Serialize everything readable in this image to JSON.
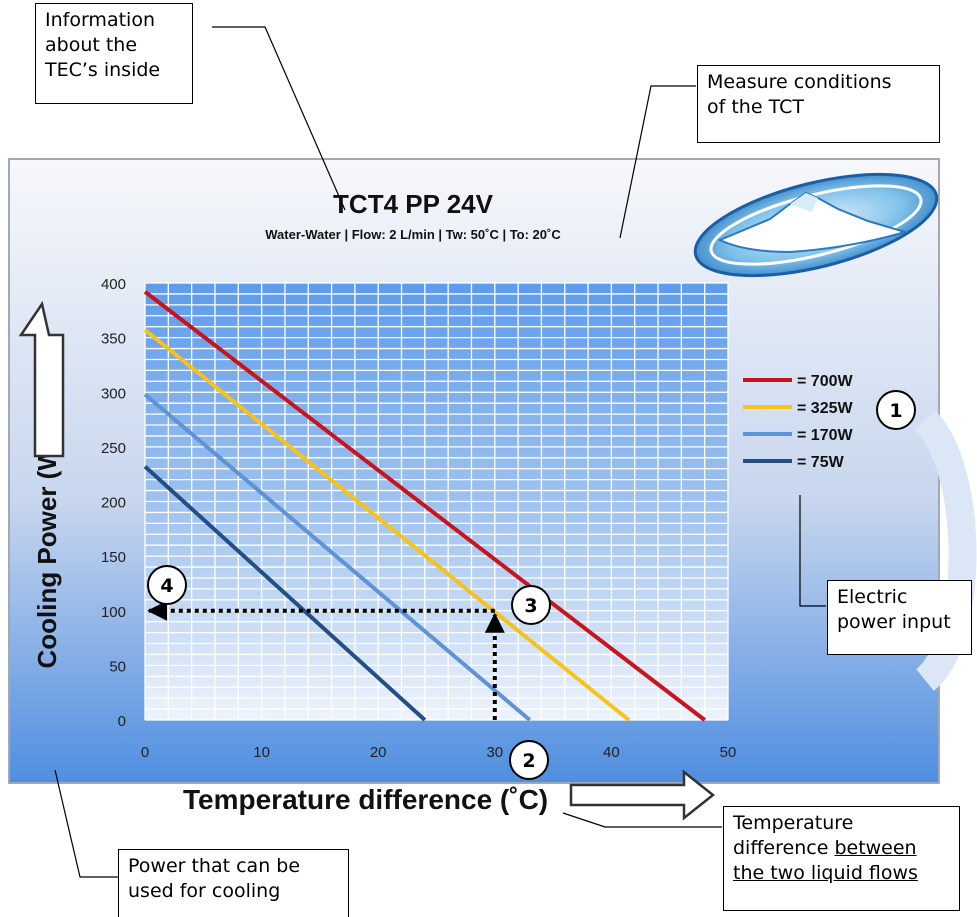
{
  "callouts": {
    "inside_info": [
      "Information",
      "about the",
      "TEC’s inside"
    ],
    "measure_conditions": [
      "Measure conditions",
      "of the TCT"
    ],
    "electric_input": [
      "Electric",
      "power input"
    ],
    "temp_difference": [
      "Temperature",
      "difference",
      "between",
      "the two liquid flows"
    ],
    "cooling_power": [
      "Power that can be",
      "used for cooling"
    ]
  },
  "markers": [
    "1",
    "2",
    "3",
    "4"
  ],
  "colors": {
    "red": "#c8141c",
    "yellow": "#f7c21a",
    "light_blue": "#5f93d6",
    "dark_blue": "#234f86",
    "grid": "#ffffff"
  },
  "chart_data": {
    "type": "line",
    "title": "TCT4 PP 24V",
    "subtitle": "Water-Water | Flow: 2 L/min | Tw: 50˚C | To: 20˚C",
    "xlabel": "Temperature difference (˚C)",
    "ylabel": "Cooling Power (W)",
    "xlim": [
      0,
      50
    ],
    "ylim": [
      0,
      400
    ],
    "xticks": [
      0,
      10,
      20,
      30,
      40,
      50
    ],
    "yticks": [
      0,
      50,
      100,
      150,
      200,
      250,
      300,
      350,
      400
    ],
    "grid": true,
    "legend_position": "right",
    "series": [
      {
        "name": "= 700W",
        "color": "#c8141c",
        "x": [
          0,
          48
        ],
        "y": [
          392,
          0
        ]
      },
      {
        "name": "= 325W",
        "color": "#f7c21a",
        "x": [
          0,
          41.5
        ],
        "y": [
          357,
          0
        ]
      },
      {
        "name": "= 170W",
        "color": "#5f93d6",
        "x": [
          0,
          33
        ],
        "y": [
          298,
          0
        ]
      },
      {
        "name": "= 75W",
        "color": "#234f86",
        "x": [
          0,
          24
        ],
        "y": [
          232,
          0
        ]
      }
    ],
    "example_path": {
      "x": [
        30,
        30,
        0
      ],
      "y": [
        0,
        100,
        100
      ]
    }
  }
}
